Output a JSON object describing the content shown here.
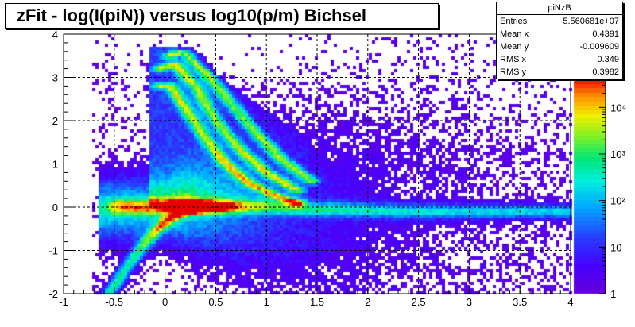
{
  "chart_data": {
    "type": "heatmap",
    "title": "zFit - log(I(piN)) versus log10(p/m) Bichsel",
    "xlim": [
      -1,
      4
    ],
    "ylim": [
      -2,
      4
    ],
    "x_ticks": [
      "-1",
      "-0.5",
      "0",
      "0.5",
      "1",
      "1.5",
      "2",
      "2.5",
      "3",
      "3.5",
      "4"
    ],
    "y_ticks": [
      "-2",
      "-1",
      "0",
      "1",
      "2",
      "3",
      "4"
    ],
    "grid": true,
    "color_scale": "log",
    "color_axis": {
      "ticks": [
        "1",
        "10",
        "10²",
        "10³",
        "10⁴"
      ],
      "tick_values": [
        1,
        10,
        100,
        1000,
        10000
      ],
      "max": 40000
    },
    "bands": [
      {
        "name": "",
        "points": [
          [
            -0.55,
            -2.0
          ],
          [
            -0.35,
            -1.3
          ],
          [
            -0.15,
            -0.7
          ],
          [
            0.0,
            -0.35
          ],
          [
            0.15,
            -0.15
          ],
          [
            0.35,
            0.0
          ]
        ]
      },
      {
        "name": "",
        "points": [
          [
            -0.05,
            2.8
          ],
          [
            0.05,
            2.8
          ],
          [
            0.2,
            2.3
          ],
          [
            0.4,
            1.6
          ],
          [
            0.6,
            1.0
          ],
          [
            0.8,
            0.6
          ],
          [
            1.05,
            0.3
          ],
          [
            1.3,
            0.1
          ]
        ]
      },
      {
        "name": "",
        "points": [
          [
            -0.05,
            3.2
          ],
          [
            0.1,
            3.3
          ],
          [
            0.3,
            2.8
          ],
          [
            0.5,
            2.0
          ],
          [
            0.75,
            1.3
          ],
          [
            1.0,
            0.8
          ],
          [
            1.3,
            0.4
          ]
        ]
      },
      {
        "name": "",
        "points": [
          [
            0.05,
            3.5
          ],
          [
            0.2,
            3.6
          ],
          [
            0.4,
            3.1
          ],
          [
            0.65,
            2.4
          ],
          [
            0.9,
            1.7
          ],
          [
            1.15,
            1.1
          ],
          [
            1.45,
            0.6
          ]
        ]
      },
      {
        "name": "",
        "points": [
          [
            -0.4,
            0.0
          ],
          [
            0.0,
            0.0
          ],
          [
            0.5,
            0.0
          ],
          [
            1.0,
            0.0
          ],
          [
            1.5,
            -0.05
          ],
          [
            2.5,
            -0.1
          ],
          [
            3.5,
            -0.1
          ],
          [
            4.0,
            -0.1
          ]
        ]
      }
    ],
    "peak": {
      "x": 0.35,
      "y": 0.0
    }
  },
  "stats": {
    "title": "piNzB",
    "rows": [
      {
        "label": "Entries",
        "value": "5.560681e+07"
      },
      {
        "label": "Mean x",
        "value": "0.4391"
      },
      {
        "label": "Mean y",
        "value": "-0.009609"
      },
      {
        "label": "RMS x",
        "value": "0.349"
      },
      {
        "label": "RMS y",
        "value": "0.3982"
      }
    ]
  }
}
